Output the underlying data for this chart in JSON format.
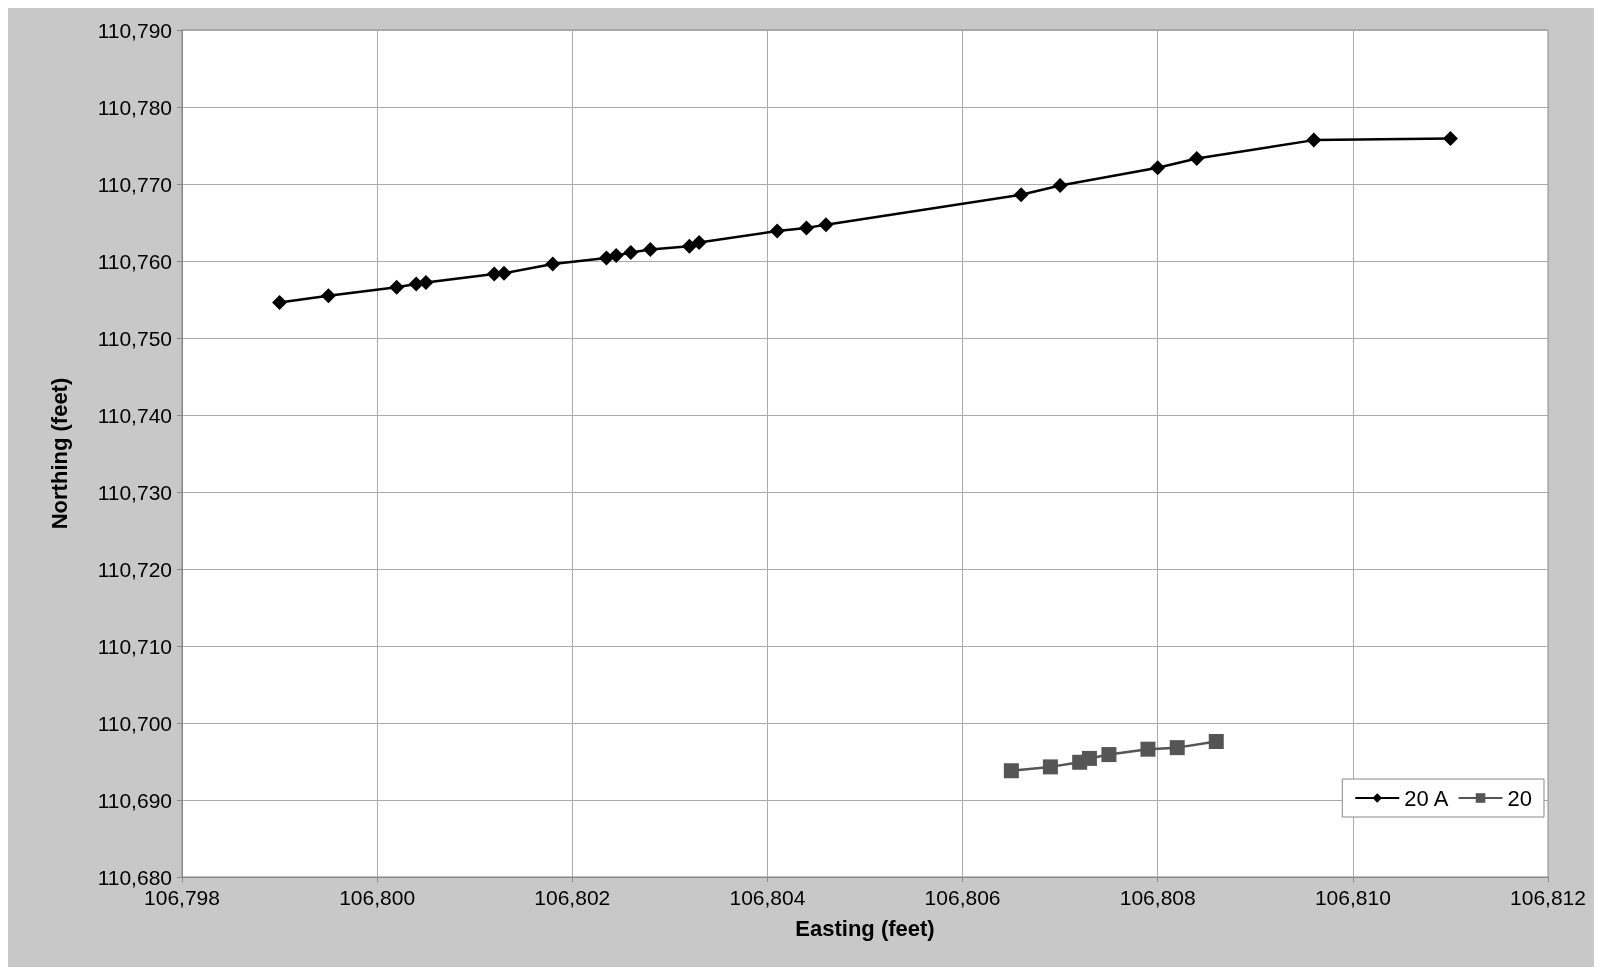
{
  "chart_data": {
    "type": "line",
    "xlabel": "Easting (feet)",
    "ylabel": "Northing (feet)",
    "xlim": [
      106798,
      106812
    ],
    "xticks": [
      {
        "value": 106798,
        "label": "106,798"
      },
      {
        "value": 106800,
        "label": "106,800"
      },
      {
        "value": 106802,
        "label": "106,802"
      },
      {
        "value": 106804,
        "label": "106,804"
      },
      {
        "value": 106806,
        "label": "106,806"
      },
      {
        "value": 106808,
        "label": "106,808"
      },
      {
        "value": 106810,
        "label": "106,810"
      },
      {
        "value": 106812,
        "label": "106,812"
      }
    ],
    "ylim": [
      110680,
      110790
    ],
    "yticks": [
      {
        "value": 110680,
        "label": "110,680"
      },
      {
        "value": 110690,
        "label": "110,690"
      },
      {
        "value": 110700,
        "label": "110,700"
      },
      {
        "value": 110710,
        "label": "110,710"
      },
      {
        "value": 110720,
        "label": "110,720"
      },
      {
        "value": 110730,
        "label": "110,730"
      },
      {
        "value": 110740,
        "label": "110,740"
      },
      {
        "value": 110750,
        "label": "110,750"
      },
      {
        "value": 110760,
        "label": "110,760"
      },
      {
        "value": 110770,
        "label": "110,770"
      },
      {
        "value": 110780,
        "label": "110,780"
      },
      {
        "value": 110790,
        "label": "110,790"
      }
    ],
    "grid": true,
    "legend": "bottom right",
    "line_style": "solid",
    "series": [
      {
        "name": "20 A",
        "color": "#000000",
        "marker": "diamond",
        "x": [
          106799.0,
          106799.5,
          106800.2,
          106800.4,
          106800.5,
          106801.2,
          106801.3,
          106801.8,
          106802.35,
          106802.45,
          106802.6,
          106802.8,
          106803.2,
          106803.3,
          106804.1,
          106804.4,
          106804.6,
          106806.6,
          106807.0,
          106808.0,
          106808.4,
          106809.6,
          106811.0
        ],
        "values": [
          110754.6,
          110755.5,
          110756.6,
          110757.0,
          110757.2,
          110758.3,
          110758.4,
          110759.6,
          110760.4,
          110760.7,
          110761.1,
          110761.5,
          110761.9,
          110762.4,
          110763.9,
          110764.3,
          110764.7,
          110768.6,
          110769.8,
          110772.1,
          110773.3,
          110775.7,
          110775.9
        ]
      },
      {
        "name": "20",
        "color": "#555555",
        "marker": "square",
        "x": [
          106806.5,
          106806.9,
          106807.2,
          106807.3,
          106807.5,
          106807.9,
          106808.2,
          106808.6
        ],
        "values": [
          110693.8,
          110694.3,
          110694.9,
          110695.4,
          110695.9,
          110696.6,
          110696.8,
          110697.6
        ]
      }
    ]
  }
}
